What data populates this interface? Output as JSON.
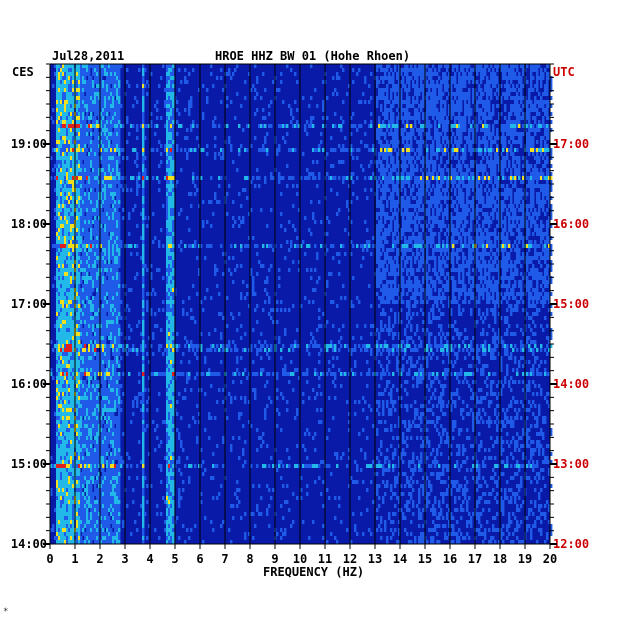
{
  "chart_data": {
    "type": "heatmap",
    "title": "HROE HHZ BW 01 (Hohe Rhoen)",
    "date": "Jul28,2011",
    "xlabel": "FREQUENCY (HZ)",
    "left_axis_label": "CES",
    "right_axis_label": "UTC",
    "x_range": [
      0,
      20
    ],
    "x_ticks": [
      "0",
      "1",
      "2",
      "3",
      "4",
      "5",
      "6",
      "7",
      "8",
      "9",
      "10",
      "11",
      "12",
      "13",
      "14",
      "15",
      "16",
      "17",
      "18",
      "19",
      "20"
    ],
    "left_time_ticks": [
      "19:00",
      "18:00",
      "17:00",
      "16:00",
      "15:00",
      "14:00"
    ],
    "right_time_ticks": [
      "17:00",
      "16:00",
      "15:00",
      "14:00",
      "13:00",
      "12:00"
    ],
    "time_range_utc": [
      "12:00",
      "17:45"
    ],
    "colors": {
      "background": "#0a1aa8",
      "grid": "#000000",
      "right_axis": "#cc0000",
      "colormap": [
        "#0a1aa8",
        "#1f5ae8",
        "#22b8e8",
        "#f0e020",
        "#e02020"
      ]
    },
    "energy_bands_hz": [
      {
        "from": 0.2,
        "to": 1.2,
        "level": "high"
      },
      {
        "from": 1.2,
        "to": 2.8,
        "level": "medium"
      },
      {
        "from": 3.65,
        "to": 3.75,
        "level": "narrow-line"
      },
      {
        "from": 4.6,
        "to": 4.95,
        "level": "narrow-line"
      },
      {
        "from": 13.0,
        "to": 20.0,
        "level": "low-medium"
      }
    ]
  },
  "footer_mark": "*"
}
